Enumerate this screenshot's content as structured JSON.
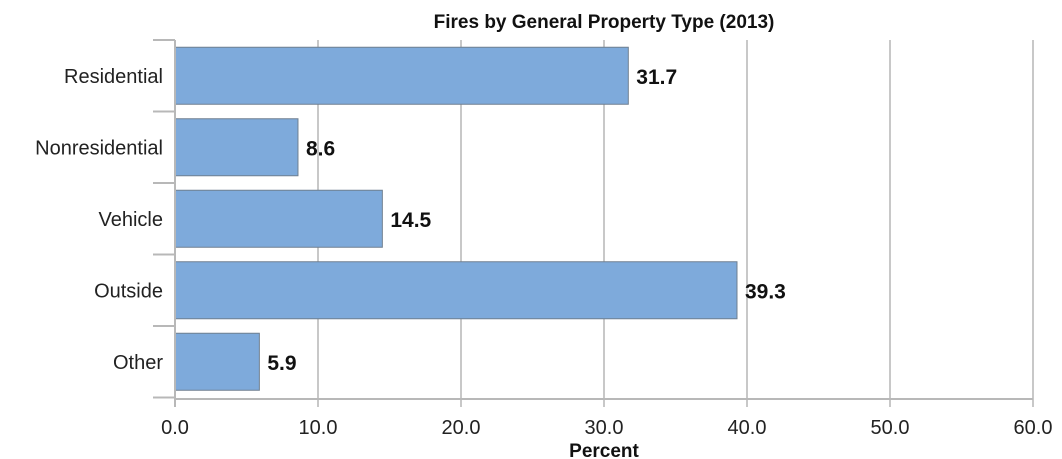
{
  "chart_data": {
    "type": "bar",
    "orientation": "horizontal",
    "title": "Fires by General Property Type (2013)",
    "xlabel": "Percent",
    "ylabel": "",
    "categories": [
      "Residential",
      "Nonresidential",
      "Vehicle",
      "Outside",
      "Other"
    ],
    "values": [
      31.7,
      8.6,
      14.5,
      39.3,
      5.9
    ],
    "data_labels": [
      "31.7",
      "8.6",
      "14.5",
      "39.3",
      "5.9"
    ],
    "xlim": [
      0,
      60
    ],
    "ticks": [
      0,
      10,
      20,
      30,
      40,
      50,
      60
    ],
    "tick_labels": [
      "0.0",
      "10.0",
      "20.0",
      "30.0",
      "40.0",
      "50.0",
      "60.0"
    ],
    "grid": true,
    "legend": "none",
    "colors": {
      "bar": "#7eaadb",
      "bar_border": "#6f7f90",
      "grid": "#c8c8c8",
      "text": "#111111"
    }
  }
}
